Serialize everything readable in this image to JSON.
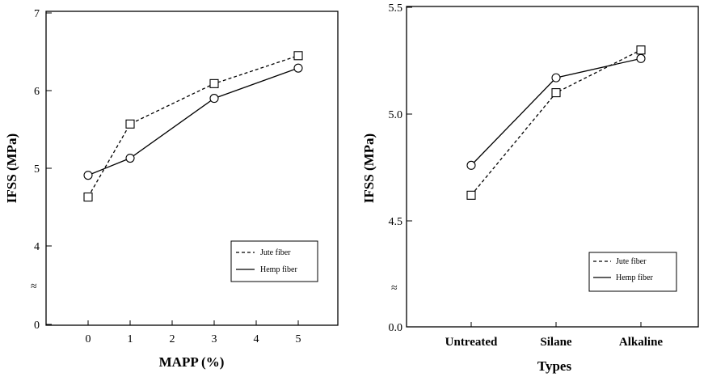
{
  "chart_data": [
    {
      "type": "line",
      "xlabel": "MAPP (%)",
      "ylabel": "IFSS (MPa)",
      "x_ticks": [
        "0",
        "1",
        "2",
        "3",
        "4",
        "5"
      ],
      "y_ticks": [
        "0",
        "4",
        "5",
        "6",
        "7"
      ],
      "axis_break": "≈",
      "xlim": [
        -1,
        6
      ],
      "ylim": [
        3.0,
        7.0
      ],
      "y_note": "broken y-axis: 0 shown at bottom, then 4–7",
      "grid": false,
      "legend_position": "bottom-right",
      "series": [
        {
          "name": "Jute fiber",
          "style": "dashed",
          "marker": "square",
          "x": [
            0,
            1,
            3,
            5
          ],
          "values": [
            4.63,
            5.57,
            6.09,
            6.45
          ]
        },
        {
          "name": "Hemp fiber",
          "style": "solid",
          "marker": "circle",
          "x": [
            0,
            1,
            3,
            5
          ],
          "values": [
            4.91,
            5.13,
            5.9,
            6.29
          ]
        }
      ]
    },
    {
      "type": "line",
      "xlabel": "Types",
      "ylabel": "IFSS (MPa)",
      "categories": [
        "Untreated",
        "Silane",
        "Alkaline"
      ],
      "y_ticks": [
        "0.0",
        "4.5",
        "5.0",
        "5.5"
      ],
      "axis_break": "≈",
      "ylim": [
        4.0,
        5.5
      ],
      "y_note": "broken y-axis: 0.0 shown at bottom, then 4.5–5.5",
      "grid": false,
      "legend_position": "bottom-right",
      "series": [
        {
          "name": "Jute fiber",
          "style": "dashed",
          "marker": "square",
          "values": [
            4.62,
            5.1,
            5.3
          ]
        },
        {
          "name": "Hemp fiber",
          "style": "solid",
          "marker": "circle",
          "values": [
            4.76,
            5.17,
            5.26
          ]
        }
      ]
    }
  ]
}
